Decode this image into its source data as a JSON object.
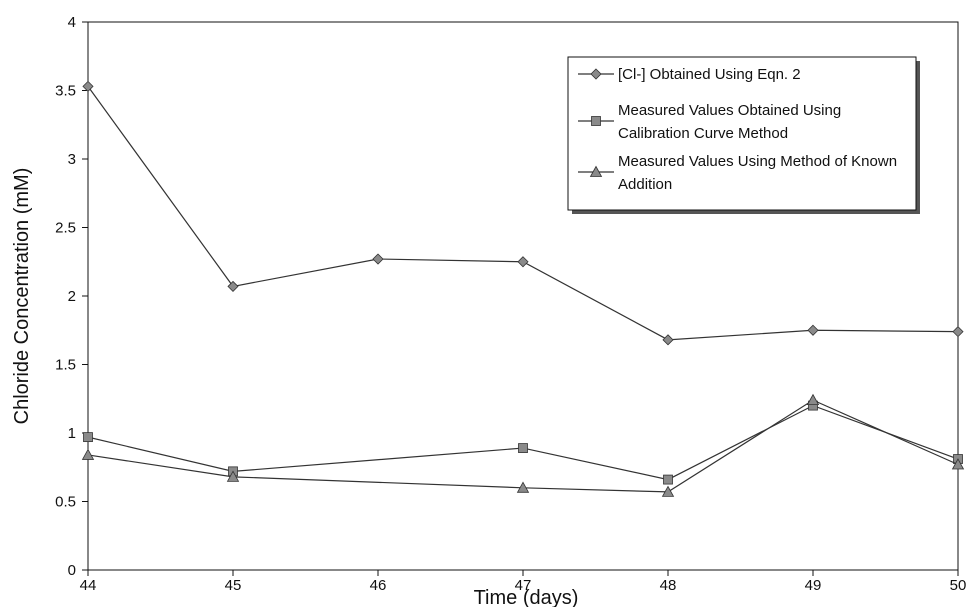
{
  "chart_data": {
    "type": "line",
    "title": "",
    "xlabel": "Time (days)",
    "ylabel": "Chloride Concentration (mM)",
    "x": [
      44,
      45,
      46,
      47,
      48,
      49,
      50
    ],
    "xlim": [
      44,
      50
    ],
    "ylim": [
      0,
      4
    ],
    "x_ticks": [
      "44",
      "45",
      "46",
      "47",
      "48",
      "49",
      "50"
    ],
    "y_ticks": [
      "0",
      "0.5",
      "1",
      "1.5",
      "2",
      "2.5",
      "3",
      "3.5",
      "4"
    ],
    "grid": false,
    "legend_position": "top-right",
    "series": [
      {
        "name": "[Cl-] Obtained Using Eqn. 2",
        "marker": "diamond",
        "points": [
          [
            44,
            3.53
          ],
          [
            45,
            2.07
          ],
          [
            46,
            2.27
          ],
          [
            47,
            2.25
          ],
          [
            48,
            1.68
          ],
          [
            49,
            1.75
          ],
          [
            50,
            1.74
          ]
        ]
      },
      {
        "name": "Measured Values Obtained Using Calibration Curve Method",
        "marker": "square",
        "points": [
          [
            44,
            0.97
          ],
          [
            45,
            0.72
          ],
          [
            47,
            0.89
          ],
          [
            48,
            0.66
          ],
          [
            49,
            1.2
          ],
          [
            50,
            0.81
          ]
        ]
      },
      {
        "name": "Measured Values Using Method of Known Addition",
        "marker": "triangle",
        "points": [
          [
            44,
            0.84
          ],
          [
            45,
            0.68
          ],
          [
            47,
            0.6
          ],
          [
            48,
            0.57
          ],
          [
            49,
            1.24
          ],
          [
            50,
            0.77
          ]
        ]
      }
    ],
    "colors": {
      "line": "#333333",
      "marker_fill": "#8a8a8a",
      "axis": "#111111"
    }
  }
}
